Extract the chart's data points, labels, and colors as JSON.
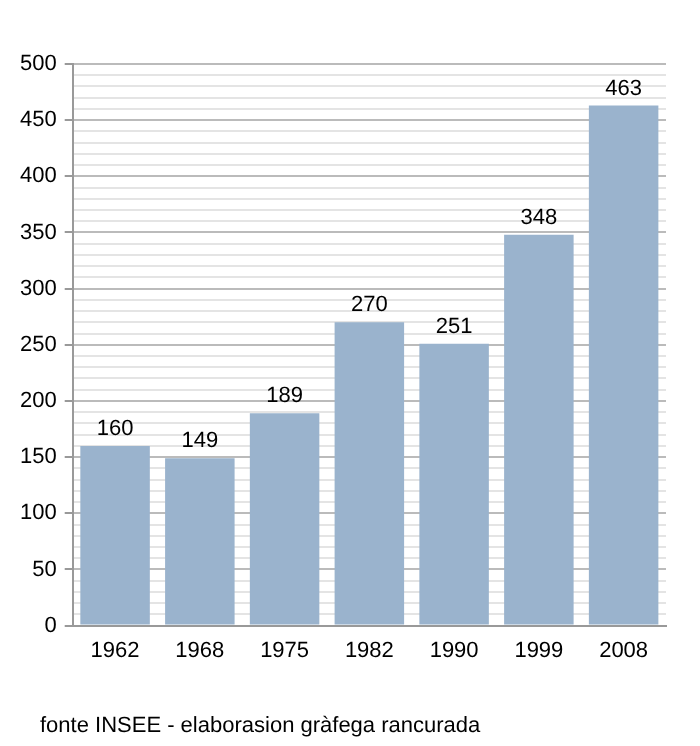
{
  "chart_data": {
    "type": "bar",
    "categories": [
      "1962",
      "1968",
      "1975",
      "1982",
      "1990",
      "1999",
      "2008"
    ],
    "values": [
      160,
      149,
      189,
      270,
      251,
      348,
      463
    ],
    "color": "#9ab3cd",
    "data_labels": true,
    "grid": true,
    "ylim": [
      0,
      500
    ],
    "yticks": [
      0,
      {
        "value": 10,
        "label": null
      },
      {
        "value": 20,
        "label": null
      },
      {
        "value": 30,
        "label": null
      },
      {
        "value": 40,
        "label": null
      },
      50,
      {
        "value": 60,
        "label": null
      },
      {
        "value": 70,
        "label": null
      },
      {
        "value": 80,
        "label": null
      },
      {
        "value": 90,
        "label": null
      },
      100,
      {
        "value": 110,
        "label": null
      },
      {
        "value": 120,
        "label": null
      },
      {
        "value": 130,
        "label": null
      },
      {
        "value": 140,
        "label": null
      },
      150,
      {
        "value": 160,
        "label": null
      },
      {
        "value": 170,
        "label": null
      },
      {
        "value": 180,
        "label": null
      },
      {
        "value": 190,
        "label": null
      },
      200,
      {
        "value": 210,
        "label": null
      },
      {
        "value": 220,
        "label": null
      },
      {
        "value": 230,
        "label": null
      },
      {
        "value": 240,
        "label": null
      },
      250,
      {
        "value": 260,
        "label": null
      },
      {
        "value": 270,
        "label": null
      },
      {
        "value": 280,
        "label": null
      },
      {
        "value": 290,
        "label": null
      },
      300,
      {
        "value": 310,
        "label": null
      },
      {
        "value": 320,
        "label": null
      },
      {
        "value": 330,
        "label": null
      },
      {
        "value": 340,
        "label": null
      },
      350,
      {
        "value": 360,
        "label": null
      },
      {
        "value": 370,
        "label": null
      },
      {
        "value": 380,
        "label": null
      },
      {
        "value": 390,
        "label": null
      },
      400,
      {
        "value": 410,
        "label": null
      },
      {
        "value": 420,
        "label": null
      },
      {
        "value": 430,
        "label": null
      },
      {
        "value": 440,
        "label": null
      },
      450,
      {
        "value": 460,
        "label": null
      },
      {
        "value": 470,
        "label": null
      },
      {
        "value": 480,
        "label": null
      },
      {
        "value": 490,
        "label": null
      },
      500
    ],
    "annotations": [
      "fonte INSEE - elaborasion gràfega rancurada"
    ]
  }
}
